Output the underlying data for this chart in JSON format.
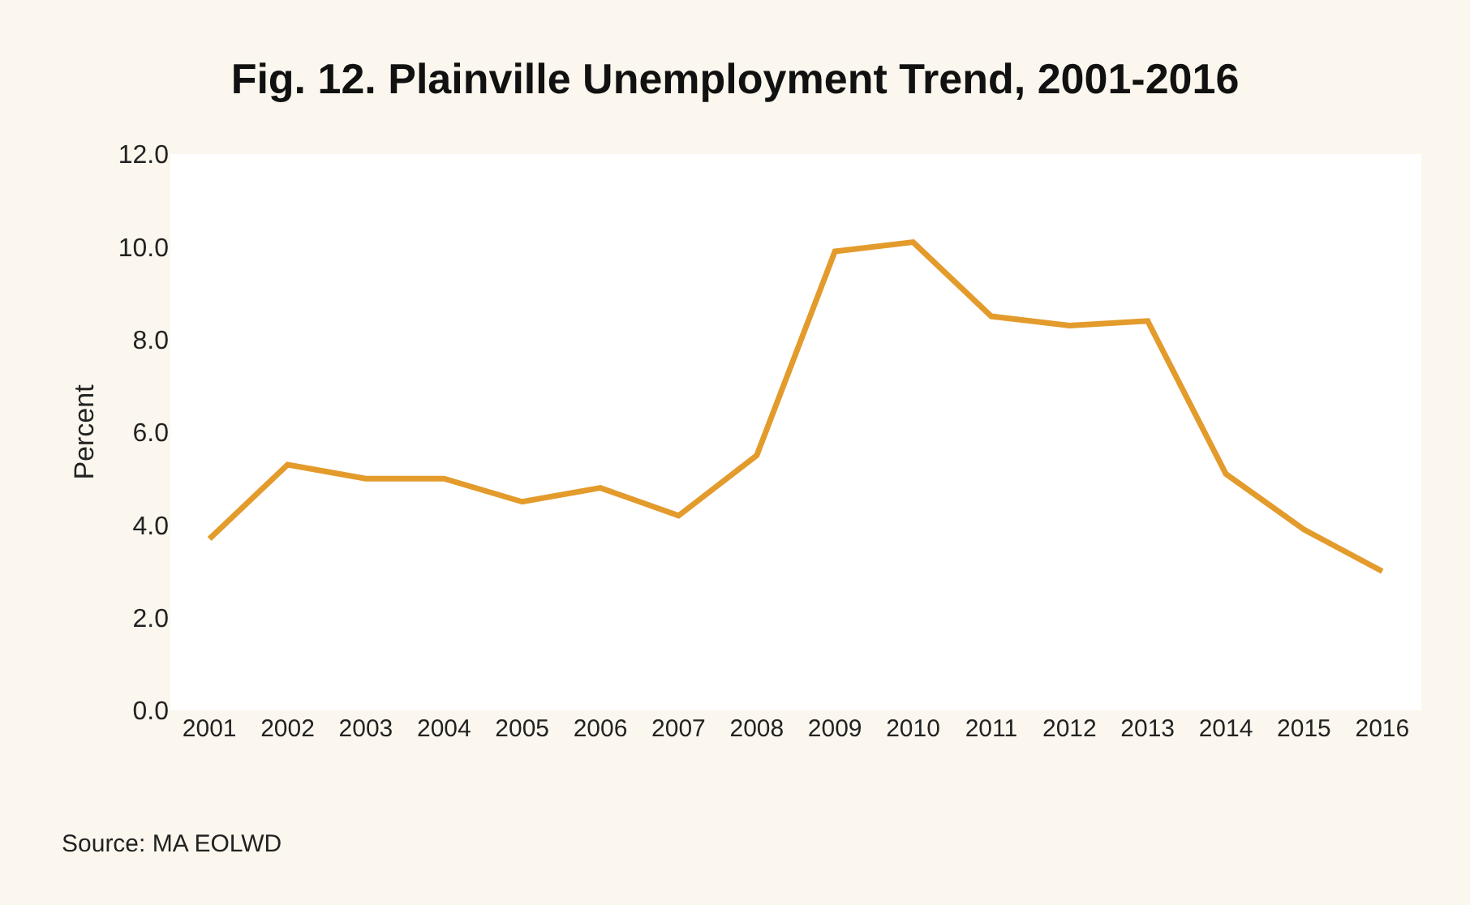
{
  "chart_data": {
    "type": "line",
    "title": "Fig. 12. Plainville Unemployment Trend, 2001-2016",
    "ylabel": "Percent",
    "categories": [
      "2001",
      "2002",
      "2003",
      "2004",
      "2005",
      "2006",
      "2007",
      "2008",
      "2009",
      "2010",
      "2011",
      "2012",
      "2013",
      "2014",
      "2015",
      "2016"
    ],
    "series": [
      {
        "color": "#e39b2c",
        "values": [
          3.7,
          5.3,
          5.0,
          5.0,
          4.5,
          4.8,
          4.2,
          5.5,
          9.9,
          10.1,
          8.5,
          8.3,
          8.4,
          5.1,
          3.9,
          3.0
        ]
      }
    ],
    "ylim": [
      0,
      12
    ],
    "yticks": [
      {
        "value": 0,
        "label": "0.0"
      },
      {
        "value": 2,
        "label": "2.0"
      },
      {
        "value": 4,
        "label": "4.0"
      },
      {
        "value": 6,
        "label": "6.0"
      },
      {
        "value": 8,
        "label": "8.0"
      },
      {
        "value": 10,
        "label": "10.0"
      },
      {
        "value": 12,
        "label": "12.0"
      }
    ],
    "marker": "none",
    "line_style": "solid",
    "annotations": [
      "Source: MA EOLWD"
    ]
  }
}
